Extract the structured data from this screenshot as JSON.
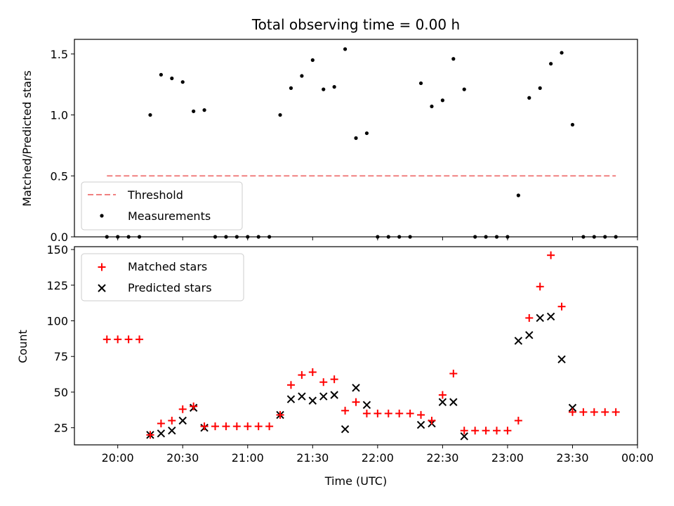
{
  "chart_data": [
    {
      "type": "scatter",
      "title": "Total observing time = 0.00 h",
      "xlabel": "",
      "ylabel": "Matched/Predicted stars",
      "ylim": [
        0,
        1.62
      ],
      "yticks": [
        0.0,
        0.5,
        1.0,
        1.5
      ],
      "ytick_labels": [
        "0.0",
        "0.5",
        "1.0",
        "1.5"
      ],
      "xticks_shown": false,
      "legend_position": "lower-left",
      "colors": {
        "threshold": "#f08080",
        "measurements": "#000000"
      },
      "threshold": {
        "name": "Threshold",
        "value": 0.5,
        "x_range": [
          "19:55",
          "23:50"
        ]
      },
      "series": [
        {
          "name": "Measurements",
          "marker": "dot",
          "x": [
            "19:55",
            "20:00",
            "20:05",
            "20:10",
            "20:15",
            "20:20",
            "20:25",
            "20:30",
            "20:35",
            "20:40",
            "20:45",
            "20:50",
            "20:55",
            "21:00",
            "21:05",
            "21:10",
            "21:15",
            "21:20",
            "21:25",
            "21:30",
            "21:35",
            "21:40",
            "21:45",
            "21:50",
            "21:55",
            "22:00",
            "22:05",
            "22:10",
            "22:15",
            "22:20",
            "22:25",
            "22:30",
            "22:35",
            "22:40",
            "22:45",
            "22:50",
            "22:55",
            "23:00",
            "23:05",
            "23:10",
            "23:15",
            "23:20",
            "23:25",
            "23:30",
            "23:35",
            "23:40",
            "23:45",
            "23:50"
          ],
          "y": [
            0,
            0,
            0,
            0,
            1.0,
            1.33,
            1.3,
            1.27,
            1.03,
            1.04,
            0,
            0,
            0,
            0,
            0,
            0,
            1.0,
            1.22,
            1.32,
            1.45,
            1.21,
            1.23,
            1.54,
            0.81,
            0.85,
            0,
            0,
            0,
            0,
            1.26,
            1.07,
            1.12,
            1.46,
            1.21,
            0,
            0,
            0,
            0,
            0.34,
            1.14,
            1.22,
            1.42,
            1.51,
            0.92,
            0,
            0,
            0,
            0
          ]
        }
      ]
    },
    {
      "type": "scatter",
      "title": "",
      "xlabel": "Time (UTC)",
      "ylabel": "Count",
      "ylim": [
        13,
        152
      ],
      "yticks": [
        25,
        50,
        75,
        100,
        125,
        150
      ],
      "ytick_labels": [
        "25",
        "50",
        "75",
        "100",
        "125",
        "150"
      ],
      "xlim": [
        "19:40",
        "24:00"
      ],
      "xticks": [
        "20:00",
        "20:30",
        "21:00",
        "21:30",
        "22:00",
        "22:30",
        "23:00",
        "23:30",
        "24:00"
      ],
      "xtick_labels": [
        "20:00",
        "20:30",
        "21:00",
        "21:30",
        "22:00",
        "22:30",
        "23:00",
        "23:30",
        "00:00"
      ],
      "legend_position": "upper-left",
      "colors": {
        "matched": "#ff0000",
        "predicted": "#000000"
      },
      "series": [
        {
          "name": "Matched stars",
          "marker": "plus",
          "x": [
            "19:55",
            "20:00",
            "20:05",
            "20:10",
            "20:15",
            "20:20",
            "20:25",
            "20:30",
            "20:35",
            "20:40",
            "20:45",
            "20:50",
            "20:55",
            "21:00",
            "21:05",
            "21:10",
            "21:15",
            "21:20",
            "21:25",
            "21:30",
            "21:35",
            "21:40",
            "21:45",
            "21:50",
            "21:55",
            "22:00",
            "22:05",
            "22:10",
            "22:15",
            "22:20",
            "22:25",
            "22:30",
            "22:35",
            "22:40",
            "22:45",
            "22:50",
            "22:55",
            "23:00",
            "23:05",
            "23:10",
            "23:15",
            "23:20",
            "23:25",
            "23:30",
            "23:35",
            "23:40",
            "23:45",
            "23:50"
          ],
          "y": [
            87,
            87,
            87,
            87,
            20,
            28,
            30,
            38,
            40,
            26,
            26,
            26,
            26,
            26,
            26,
            26,
            34,
            55,
            62,
            64,
            57,
            59,
            37,
            43,
            35,
            35,
            35,
            35,
            35,
            34,
            30,
            48,
            63,
            23,
            23,
            23,
            23,
            23,
            30,
            102,
            124,
            146,
            110,
            36,
            36,
            36,
            36,
            36
          ]
        },
        {
          "name": "Predicted stars",
          "marker": "x",
          "x": [
            "20:15",
            "20:20",
            "20:25",
            "20:30",
            "20:35",
            "20:40",
            "21:15",
            "21:20",
            "21:25",
            "21:30",
            "21:35",
            "21:40",
            "21:45",
            "21:50",
            "21:55",
            "22:20",
            "22:25",
            "22:30",
            "22:35",
            "22:40",
            "23:05",
            "23:10",
            "23:15",
            "23:20",
            "23:25",
            "23:30"
          ],
          "y": [
            20,
            21,
            23,
            30,
            39,
            25,
            34,
            45,
            47,
            44,
            47,
            48,
            24,
            53,
            41,
            27,
            28,
            43,
            43,
            19,
            86,
            90,
            102,
            103,
            73,
            39
          ]
        }
      ]
    }
  ]
}
